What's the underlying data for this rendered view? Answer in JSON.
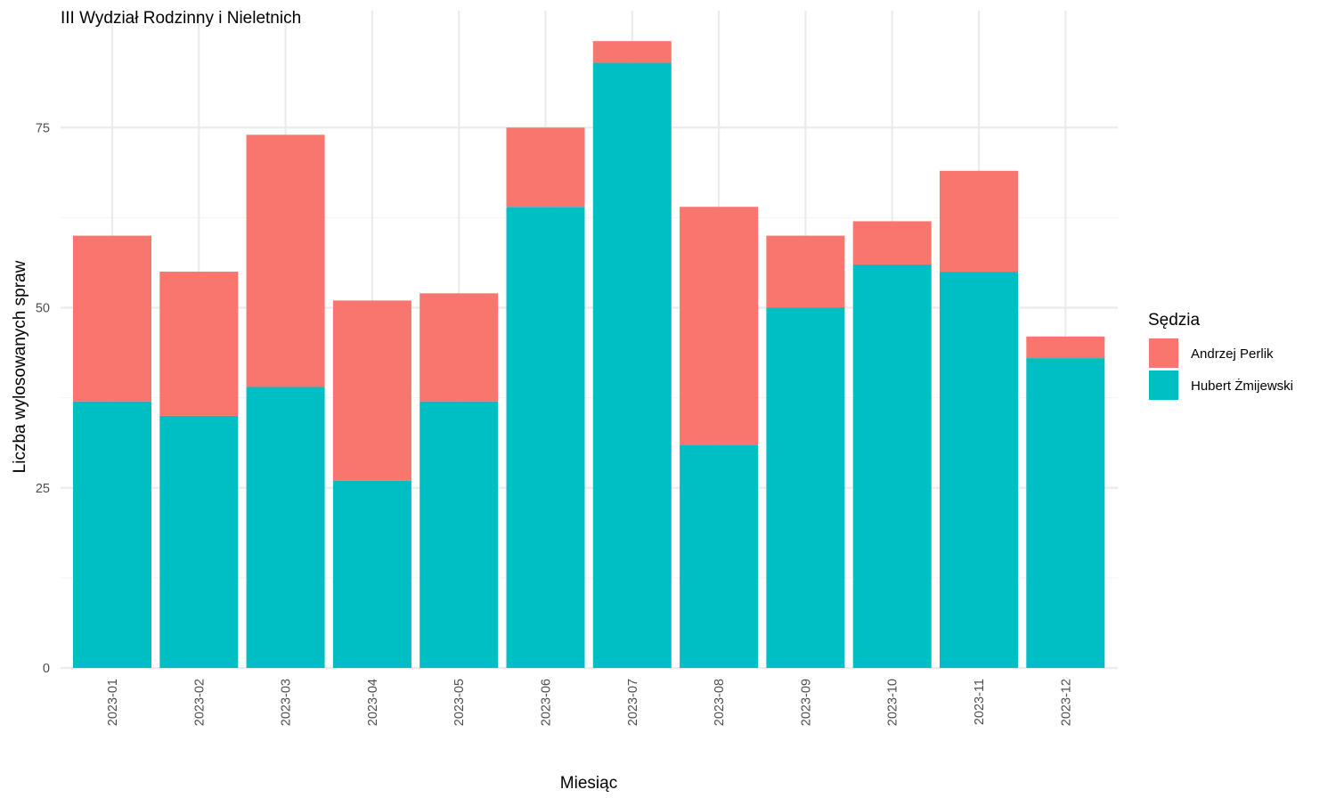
{
  "chart_data": {
    "type": "bar",
    "stacked": true,
    "title": "III Wydział Rodzinny i Nieletnich",
    "xlabel": "Miesiąc",
    "ylabel": "Liczba wylosowanych spraw",
    "ylim": [
      0,
      87
    ],
    "yticks": [
      0,
      25,
      50,
      75
    ],
    "grid": true,
    "legend_position": "right",
    "legend_title": "Sędzia",
    "categories": [
      "2023-01",
      "2023-02",
      "2023-03",
      "2023-04",
      "2023-05",
      "2023-06",
      "2023-07",
      "2023-08",
      "2023-09",
      "2023-10",
      "2023-11",
      "2023-12"
    ],
    "series": [
      {
        "name": "Hubert Żmijewski",
        "color": "#00BFC4",
        "values": [
          37,
          35,
          39,
          26,
          37,
          64,
          84,
          31,
          50,
          56,
          55,
          43
        ]
      },
      {
        "name": "Andrzej Perlik",
        "color": "#F8766D",
        "values": [
          23,
          20,
          35,
          25,
          15,
          11,
          3,
          33,
          10,
          6,
          14,
          3
        ]
      }
    ],
    "legend_order": [
      "Andrzej Perlik",
      "Hubert Żmijewski"
    ]
  }
}
